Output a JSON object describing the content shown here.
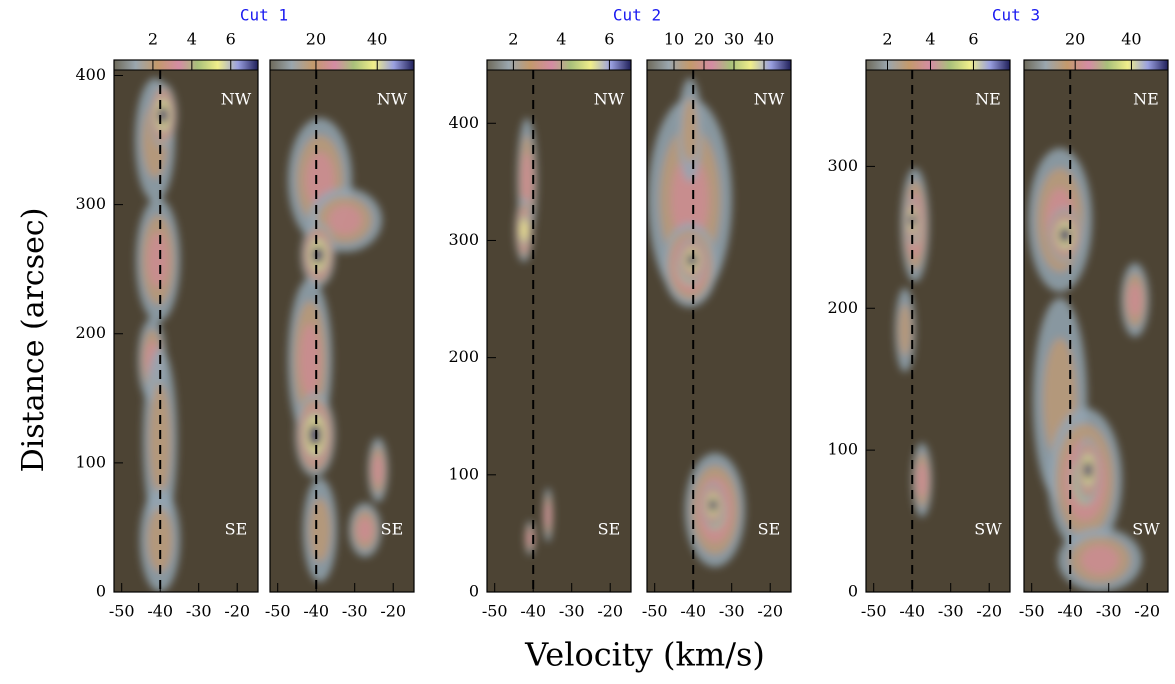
{
  "figure": {
    "xlabel": "Velocity (km/s)",
    "ylabel": "Distance (arcsec)"
  },
  "chart_data": [
    {
      "type": "heatmap",
      "title": "Cut 1",
      "xlim": [
        -52,
        -14.6
      ],
      "xticks": [
        -50,
        -40,
        -30,
        -20
      ],
      "ylim": [
        0,
        412
      ],
      "yticks": [
        0,
        100,
        200,
        300,
        400
      ],
      "colorbar_lim": [
        0,
        7.4
      ],
      "colorbar_ticks": [
        2,
        4,
        6
      ],
      "reference_line": -40,
      "labels": [
        "NW",
        "SE"
      ]
    },
    {
      "type": "heatmap",
      "xlim": [
        -52,
        -14.6
      ],
      "xticks": [
        -50,
        -40,
        -30,
        -20
      ],
      "ylim": [
        0,
        412
      ],
      "colorbar_lim": [
        5,
        52
      ],
      "colorbar_ticks": [
        20,
        40
      ],
      "reference_line": -40,
      "labels": [
        "NW",
        "SE"
      ]
    },
    {
      "type": "heatmap",
      "title": "Cut 2",
      "xlim": [
        -52,
        -14.6
      ],
      "xticks": [
        -50,
        -40,
        -30,
        -20
      ],
      "ylim": [
        0,
        454
      ],
      "yticks": [
        0,
        100,
        200,
        300,
        400
      ],
      "colorbar_lim": [
        0.9,
        6.9
      ],
      "colorbar_ticks": [
        2,
        4,
        6
      ],
      "reference_line": -40,
      "labels": [
        "NW",
        "SE"
      ]
    },
    {
      "type": "heatmap",
      "xlim": [
        -52,
        -14.6
      ],
      "xticks": [
        -50,
        -40,
        -30,
        -20
      ],
      "ylim": [
        0,
        454
      ],
      "colorbar_lim": [
        1,
        49
      ],
      "colorbar_ticks": [
        10,
        20,
        30,
        40
      ],
      "reference_line": -40,
      "labels": [
        "NW",
        "SE"
      ]
    },
    {
      "type": "heatmap",
      "title": "Cut 3",
      "xlim": [
        -52,
        -14.6
      ],
      "xticks": [
        -50,
        -40,
        -30,
        -20
      ],
      "ylim": [
        0,
        375
      ],
      "yticks": [
        0,
        100,
        200,
        300
      ],
      "colorbar_lim": [
        1,
        7.7
      ],
      "colorbar_ticks": [
        2,
        4,
        6
      ],
      "reference_line": -40,
      "labels": [
        "NE",
        "SW"
      ]
    },
    {
      "type": "heatmap",
      "xlim": [
        -52,
        -14.6
      ],
      "xticks": [
        -50,
        -40,
        -30,
        -20
      ],
      "ylim": [
        0,
        375
      ],
      "colorbar_lim": [
        1.8,
        53
      ],
      "colorbar_ticks": [
        20,
        40
      ],
      "reference_line": -40,
      "labels": [
        "NE",
        "SW"
      ]
    }
  ]
}
